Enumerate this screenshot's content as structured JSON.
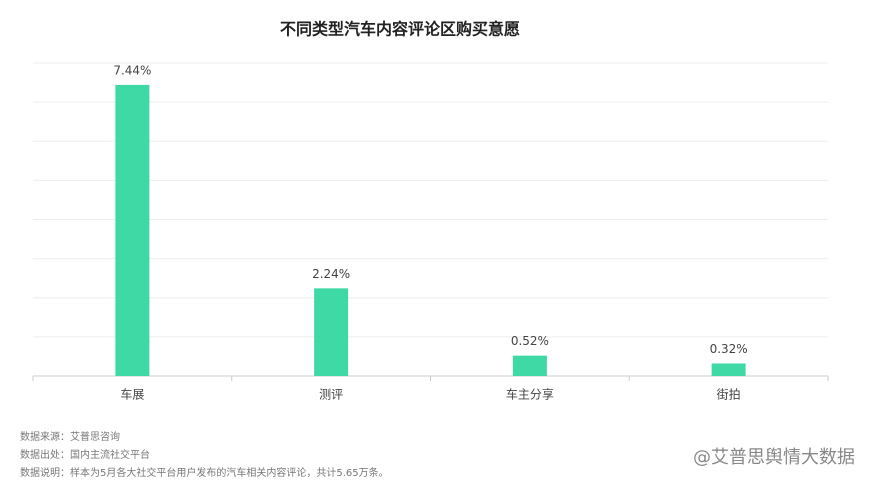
{
  "chart_data": {
    "type": "bar",
    "title": "不同类型汽车内容评论区购买意愿",
    "categories": [
      "车展",
      "测评",
      "车主分享",
      "街拍"
    ],
    "values": [
      7.44,
      2.24,
      0.52,
      0.32
    ],
    "value_labels": [
      "7.44%",
      "2.24%",
      "0.52%",
      "0.32%"
    ],
    "color": "#3ed9a4",
    "ylim": [
      0,
      8
    ],
    "yticks": [
      0,
      1,
      2,
      3,
      4,
      5,
      6,
      7,
      8
    ],
    "grid": true
  },
  "notes": [
    "数据来源：艾普思咨询",
    "数据出处：国内主流社交平台",
    "数据说明：样本为5月各大社交平台用户发布的汽车相关内容评论，共计5.65万条。"
  ],
  "watermark": "@艾普思舆情大数据"
}
